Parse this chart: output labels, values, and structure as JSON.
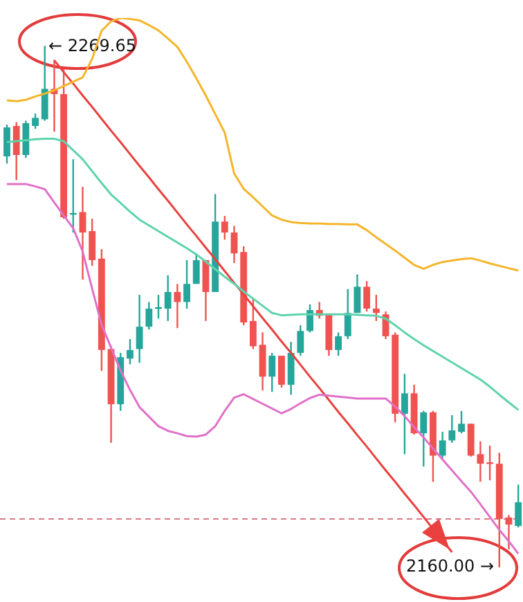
{
  "chart_data": {
    "type": "candlestick",
    "categories": [
      null,
      null,
      null,
      null,
      null,
      null,
      null,
      null,
      null,
      null,
      null,
      null,
      null,
      null,
      null,
      null,
      null,
      null,
      null,
      null,
      null,
      null,
      null,
      null,
      null,
      null,
      null,
      null,
      null,
      null,
      null,
      null,
      null,
      null,
      null,
      null,
      null,
      null,
      null,
      null,
      null,
      null,
      null,
      null,
      null,
      null,
      null,
      null,
      null,
      null,
      null,
      null,
      null,
      null,
      null
    ],
    "ohlc": [
      [
        2246.4,
        2253.1,
        2244.9,
        2252.5
      ],
      [
        2252.8,
        2253.6,
        2241.4,
        2246.7
      ],
      [
        2246.7,
        2253.9,
        2246.1,
        2253.4
      ],
      [
        2252.8,
        2255.4,
        2252.2,
        2254.5
      ],
      [
        2254.2,
        2269.65,
        2253.9,
        2260.6
      ],
      [
        2260.6,
        2266.7,
        2251.6,
        2259.5
      ],
      [
        2259.5,
        2264.7,
        2233.3,
        2233.6
      ],
      [
        2234.5,
        2245.8,
        2230.4,
        2234.5
      ],
      [
        2234.7,
        2240.0,
        2220.5,
        2230.4
      ],
      [
        2230.7,
        2233.3,
        2223.4,
        2224.6
      ],
      [
        2224.9,
        2226.9,
        2201.3,
        2205.7
      ],
      [
        2205.9,
        2206.5,
        2186.2,
        2194.3
      ],
      [
        2194.3,
        2205.1,
        2192.9,
        2204.2
      ],
      [
        2203.9,
        2208.0,
        2202.7,
        2205.7
      ],
      [
        2205.9,
        2217.3,
        2203.0,
        2210.6
      ],
      [
        2210.6,
        2215.8,
        2210.0,
        2214.4
      ],
      [
        2214.4,
        2217.3,
        2212.3,
        2214.7
      ],
      [
        2214.4,
        2221.4,
        2211.8,
        2217.9
      ],
      [
        2217.9,
        2219.6,
        2210.3,
        2215.8
      ],
      [
        2215.8,
        2224.6,
        2214.4,
        2219.6
      ],
      [
        2219.6,
        2226.0,
        2219.6,
        2224.6
      ],
      [
        2224.6,
        2224.6,
        2211.8,
        2217.9
      ],
      [
        2217.9,
        2238.5,
        2217.9,
        2232.7
      ],
      [
        2232.7,
        2233.9,
        2228.9,
        2230.4
      ],
      [
        2230.4,
        2231.8,
        2224.0,
        2226.0
      ],
      [
        2226.3,
        2227.5,
        2210.9,
        2211.5
      ],
      [
        2211.8,
        2216.7,
        2205.9,
        2206.5
      ],
      [
        2206.8,
        2209.4,
        2197.2,
        2200.1
      ],
      [
        2200.1,
        2205.1,
        2196.9,
        2204.5
      ],
      [
        2204.5,
        2204.5,
        2197.8,
        2198.4
      ],
      [
        2198.4,
        2207.4,
        2196.3,
        2205.1
      ],
      [
        2205.1,
        2210.9,
        2204.5,
        2209.7
      ],
      [
        2209.7,
        2215.3,
        2209.4,
        2214.1
      ],
      [
        2214.1,
        2215.8,
        2212.3,
        2212.9
      ],
      [
        2213.2,
        2213.2,
        2204.5,
        2205.7
      ],
      [
        2205.7,
        2209.4,
        2204.5,
        2208.6
      ],
      [
        2208.6,
        2218.5,
        2208.0,
        2213.5
      ],
      [
        2213.5,
        2221.6,
        2213.5,
        2219.0
      ],
      [
        2219.0,
        2220.2,
        2213.8,
        2214.4
      ],
      [
        2214.4,
        2217.3,
        2211.8,
        2213.5
      ],
      [
        2213.2,
        2213.8,
        2208.0,
        2208.6
      ],
      [
        2208.9,
        2209.4,
        2190.5,
        2192.3
      ],
      [
        2192.3,
        2200.7,
        2183.8,
        2196.6
      ],
      [
        2196.6,
        2198.4,
        2187.9,
        2188.2
      ],
      [
        2188.2,
        2192.9,
        2181.2,
        2192.6
      ],
      [
        2192.6,
        2192.9,
        2178.0,
        2183.5
      ],
      [
        2183.5,
        2188.5,
        2183.0,
        2186.7
      ],
      [
        2186.7,
        2192.0,
        2186.2,
        2188.8
      ],
      [
        2188.5,
        2192.9,
        2188.2,
        2190.2
      ],
      [
        2190.2,
        2190.2,
        2183.3,
        2183.5
      ],
      [
        2183.8,
        2186.5,
        2178.0,
        2181.8
      ],
      [
        2182.1,
        2185.6,
        2178.3,
        2181.8
      ],
      [
        2181.8,
        2184.1,
        2160.0,
        2170.2
      ],
      [
        2170.5,
        2171.0,
        2163.8,
        2169.0
      ],
      [
        2168.7,
        2177.4,
        2168.4,
        2173.7
      ]
    ],
    "colors": [
      "#26a69a",
      "#ef5350",
      "#26a69a",
      "#26a69a",
      "#26a69a",
      "#ef5350",
      "#ef5350",
      "#26a69a",
      "#ef5350",
      "#ef5350",
      "#ef5350",
      "#ef5350",
      "#26a69a",
      "#26a69a",
      "#26a69a",
      "#26a69a",
      "#26a69a",
      "#26a69a",
      "#ef5350",
      "#26a69a",
      "#26a69a",
      "#ef5350",
      "#26a69a",
      "#ef5350",
      "#ef5350",
      "#ef5350",
      "#ef5350",
      "#ef5350",
      "#26a69a",
      "#ef5350",
      "#26a69a",
      "#26a69a",
      "#26a69a",
      "#ef5350",
      "#ef5350",
      "#26a69a",
      "#26a69a",
      "#26a69a",
      "#ef5350",
      "#ef5350",
      "#ef5350",
      "#ef5350",
      "#26a69a",
      "#ef5350",
      "#26a69a",
      "#ef5350",
      "#26a69a",
      "#26a69a",
      "#26a69a",
      "#ef5350",
      "#ef5350",
      "#ef5350",
      "#ef5350",
      "#ef5350",
      "#26a69a"
    ],
    "series": [
      {
        "type": "line",
        "color": "#f4b52a",
        "values": [
          2258.2,
          2258.0,
          2258.3,
          2259.0,
          2259.6,
          2260.3,
          2261.2,
          2262.1,
          2263.0,
          2266.9,
          2272.8,
          2274.8,
          2275.5,
          2275.3,
          2275.0,
          2274.0,
          2272.9,
          2271.2,
          2269.4,
          2266.3,
          2262.8,
          2259.2,
          2255.3,
          2251.4,
          2242.8,
          2239.6,
          2237.8,
          2235.9,
          2234.0,
          2233.1,
          2232.6,
          2232.4,
          2232.3,
          2232.3,
          2232.2,
          2232.2,
          2232.1,
          2232.1,
          2230.9,
          2229.4,
          2228.0,
          2226.6,
          2225.1,
          2223.6,
          2222.8,
          2223.6,
          2224.2,
          2224.5,
          2224.8,
          2225.0,
          2224.5,
          2223.9,
          2223.4,
          2222.9,
          2222.4
        ]
      },
      {
        "type": "line",
        "color": "#5ed3ad",
        "values": [
          2249.4,
          2249.6,
          2249.8,
          2250.0,
          2250.1,
          2250.1,
          2249.6,
          2247.7,
          2245.8,
          2243.3,
          2240.8,
          2238.4,
          2236.6,
          2234.8,
          2233.1,
          2231.9,
          2230.7,
          2229.5,
          2228.3,
          2227.1,
          2225.8,
          2224.3,
          2222.7,
          2221.1,
          2219.6,
          2218.0,
          2216.5,
          2215.0,
          2213.5,
          2213.0,
          2213.1,
          2213.2,
          2213.2,
          2213.2,
          2213.2,
          2213.2,
          2213.2,
          2213.1,
          2213.0,
          2212.9,
          2212.3,
          2210.9,
          2209.4,
          2208.0,
          2206.7,
          2205.5,
          2204.3,
          2203.1,
          2201.9,
          2200.7,
          2199.5,
          2198.0,
          2196.3,
          2194.7,
          2193.1
        ]
      },
      {
        "type": "line",
        "color": "#e170c8",
        "values": [
          2240.6,
          2240.6,
          2240.6,
          2240.1,
          2239.5,
          2236.7,
          2234.0,
          2231.3,
          2226.4,
          2218.6,
          2211.0,
          2206.2,
          2201.4,
          2197.3,
          2193.7,
          2191.7,
          2189.7,
          2188.7,
          2188.2,
          2187.6,
          2187.5,
          2187.9,
          2189.7,
          2192.9,
          2195.7,
          2196.4,
          2195.4,
          2194.4,
          2193.4,
          2192.4,
          2193.3,
          2194.5,
          2195.6,
          2196.3,
          2196.1,
          2195.9,
          2195.7,
          2195.5,
          2195.5,
          2195.5,
          2195.5,
          2193.8,
          2191.8,
          2189.5,
          2187.3,
          2185.0,
          2182.7,
          2180.4,
          2178.1,
          2175.9,
          2173.3,
          2170.6,
          2167.9,
          2165.5,
          2162.9
        ]
      },
      {
        "type": "line",
        "color": "#e8413f",
        "values": [
          null,
          null,
          null,
          null,
          null,
          2266.6,
          2264.1,
          2261.7,
          2259.2,
          2256.8,
          2254.3,
          2251.8,
          2249.4,
          2246.9,
          2244.4,
          2242.0,
          2239.5,
          2237.1,
          2234.6,
          2232.1,
          2229.7,
          2227.2,
          2224.8,
          2222.3,
          2219.8,
          2217.4,
          2214.9,
          2212.4,
          2210.0,
          2207.5,
          2205.1,
          2202.6,
          2200.1,
          2197.7,
          2195.2,
          2192.7,
          2190.3,
          2187.8,
          2185.4,
          2182.9,
          2180.4,
          2178.0,
          2175.5,
          2173.1,
          2170.6,
          2168.1,
          2165.7,
          2163.2,
          null,
          null,
          null,
          null,
          null,
          null,
          null
        ]
      }
    ],
    "ref_lines": [
      {
        "axis": "y",
        "value": 2170.2,
        "color": "#d9798a",
        "line_style": "dashed"
      }
    ],
    "annotations": [
      "← 2269.65",
      "2160.00 →"
    ]
  }
}
